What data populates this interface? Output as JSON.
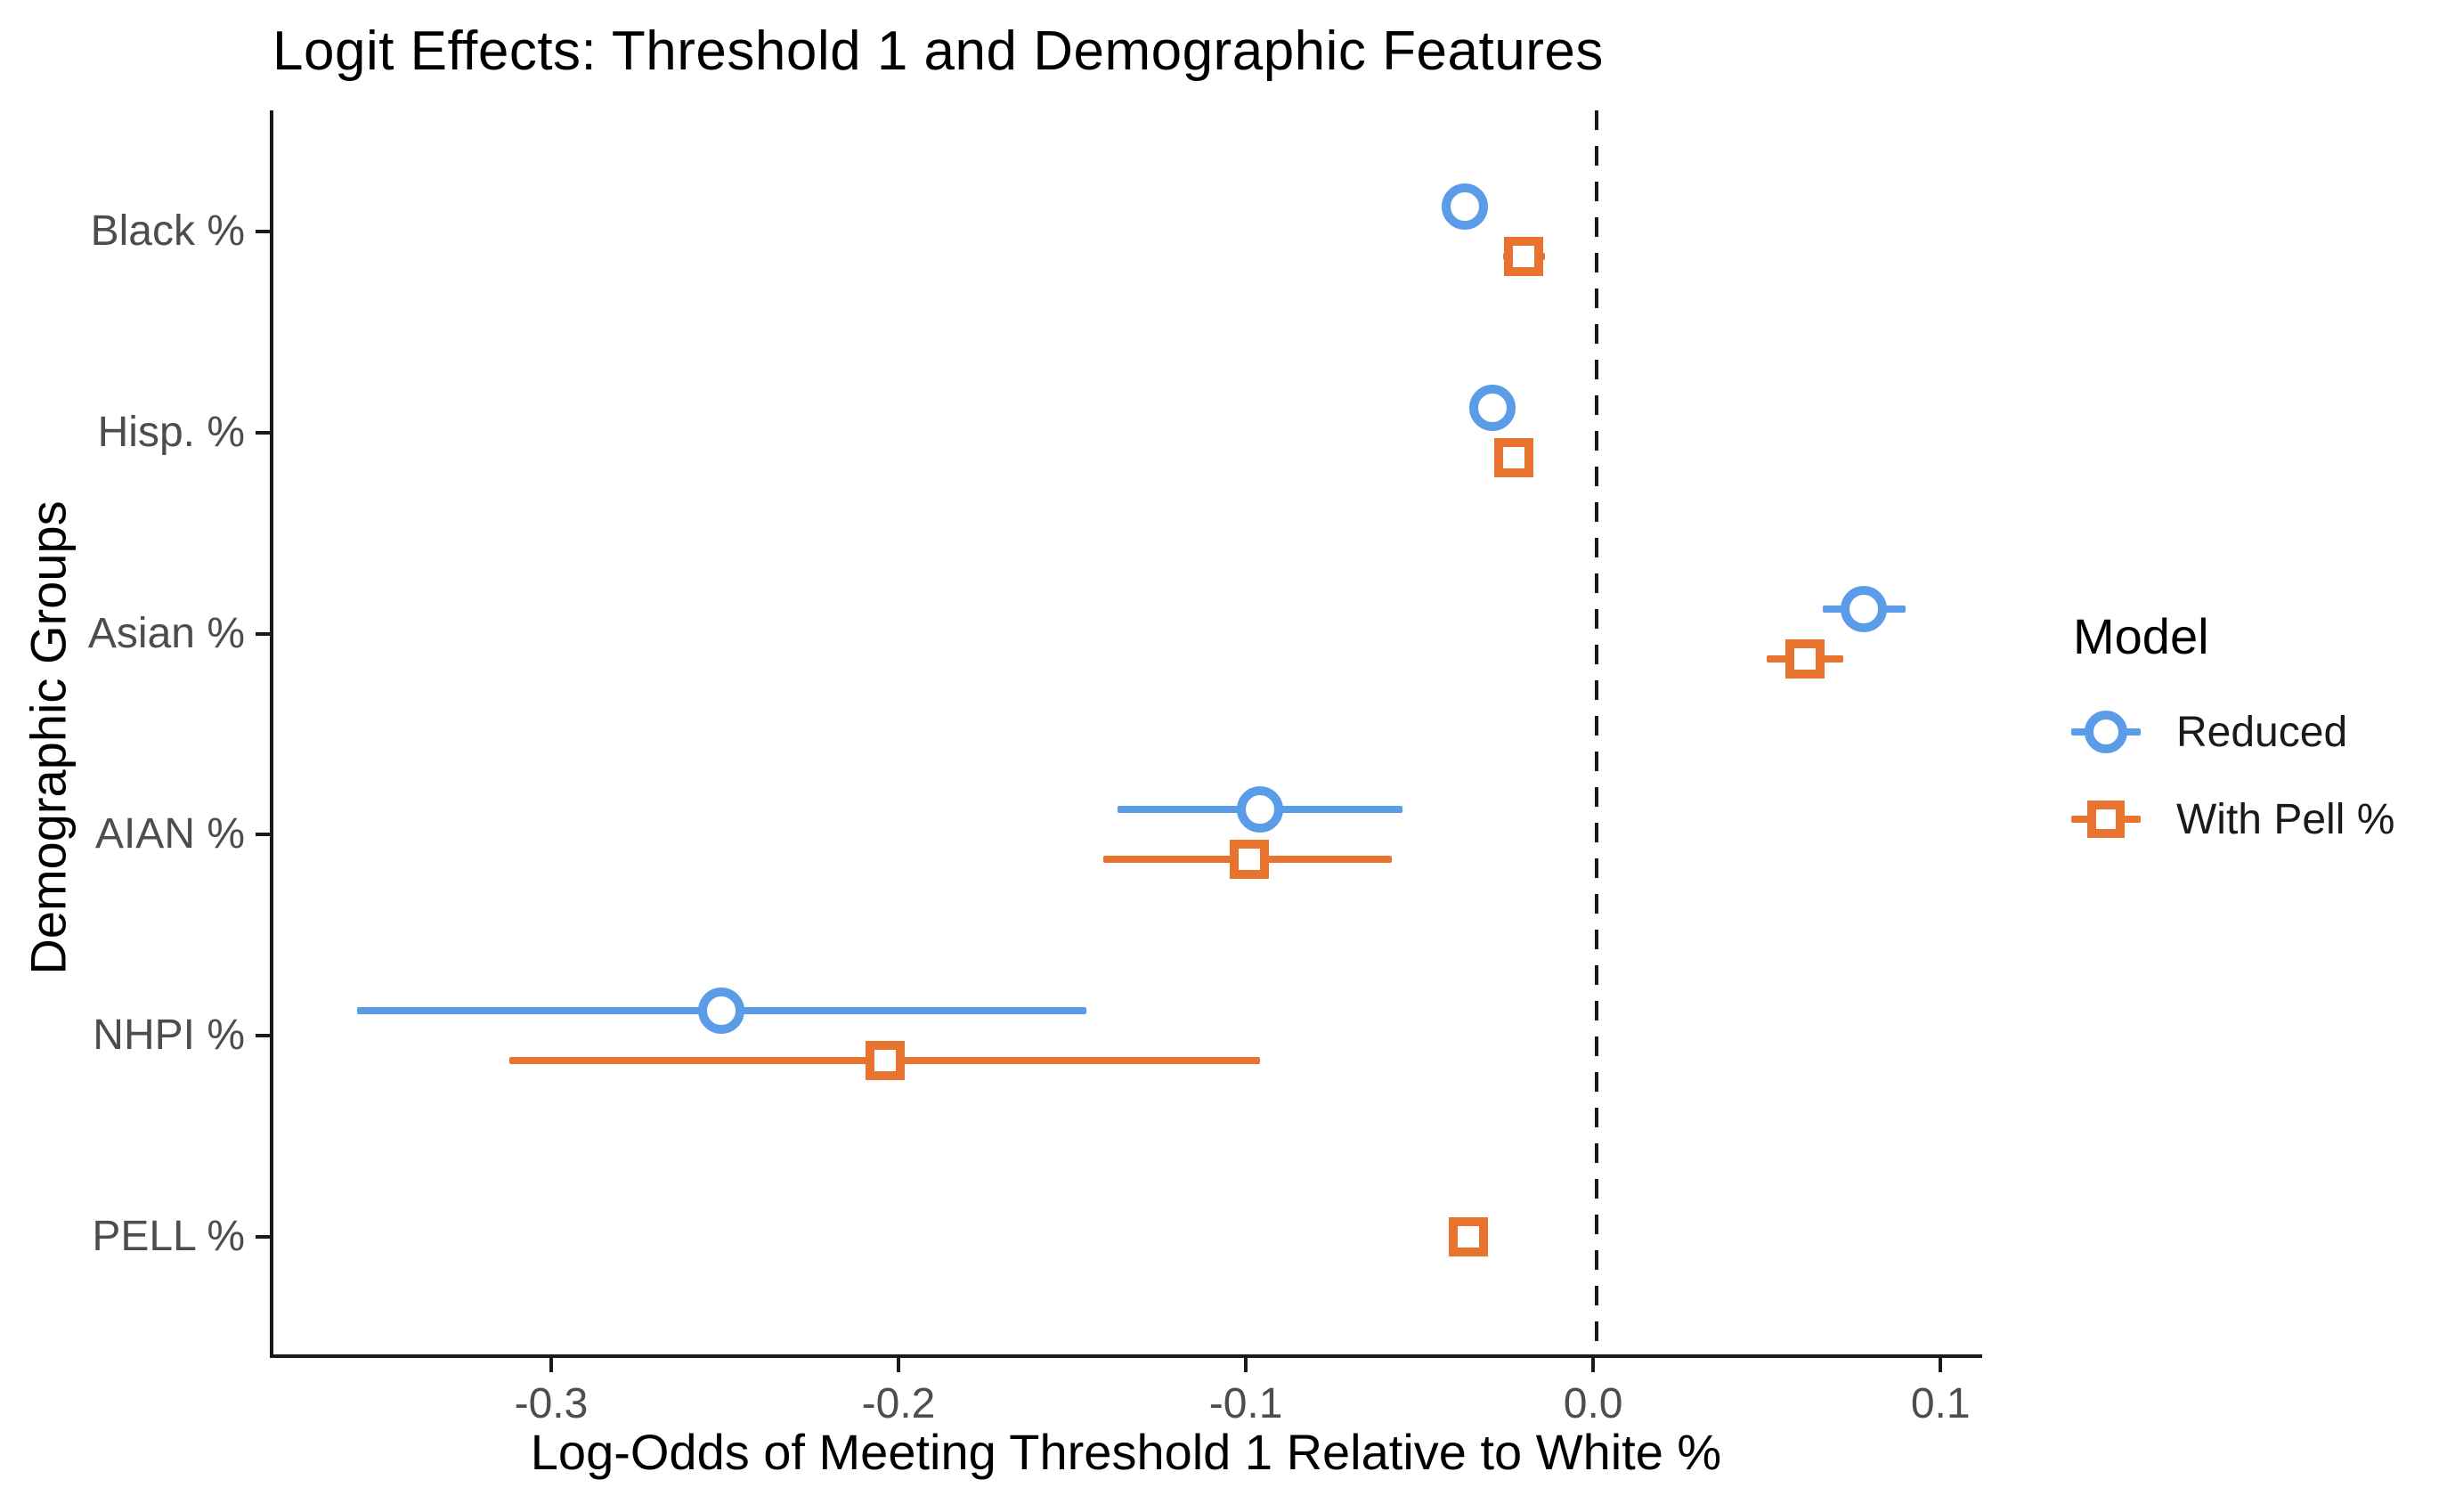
{
  "chart_data": {
    "type": "scatter",
    "subtype": "dot-and-whisker coefficient plot",
    "title": "Logit Effects: Threshold 1 and Demographic Features",
    "xlabel": "Log-Odds of Meeting Threshold 1 Relative to White %",
    "ylabel": "Demographic Groups",
    "categories": [
      "Black %",
      "Hisp. %",
      "Asian %",
      "AIAN %",
      "NHPI %",
      "PELL %"
    ],
    "x_tick_labels": [
      "-0.3",
      "-0.2",
      "-0.1",
      "0.0",
      "0.1"
    ],
    "x_tick_values": [
      -0.3,
      -0.2,
      -0.1,
      0.0,
      0.1
    ],
    "xlim": [
      -0.381,
      0.112
    ],
    "reference_line_x": 0,
    "grid": false,
    "legend": {
      "title": "Model",
      "position": "right",
      "entries": [
        "Reduced",
        "With Pell %"
      ]
    },
    "series": [
      {
        "name": "Reduced",
        "marker": "circle",
        "color": "#5B9CE8",
        "points": [
          {
            "category": "Black %",
            "estimate": -0.038,
            "ci_low": -0.038,
            "ci_high": -0.038
          },
          {
            "category": "Hisp. %",
            "estimate": -0.03,
            "ci_low": -0.03,
            "ci_high": -0.03
          },
          {
            "category": "Asian %",
            "estimate": 0.077,
            "ci_low": 0.065,
            "ci_high": 0.089
          },
          {
            "category": "AIAN %",
            "estimate": -0.097,
            "ci_low": -0.138,
            "ci_high": -0.056
          },
          {
            "category": "NHPI %",
            "estimate": -0.252,
            "ci_low": -0.357,
            "ci_high": -0.147
          },
          {
            "category": "PELL %",
            "estimate": null,
            "ci_low": null,
            "ci_high": null
          }
        ]
      },
      {
        "name": "With Pell %",
        "marker": "square",
        "color": "#E8732E",
        "points": [
          {
            "category": "Black %",
            "estimate": -0.021,
            "ci_low": -0.027,
            "ci_high": -0.015
          },
          {
            "category": "Hisp. %",
            "estimate": -0.024,
            "ci_low": -0.024,
            "ci_high": -0.024
          },
          {
            "category": "Asian %",
            "estimate": 0.06,
            "ci_low": 0.049,
            "ci_high": 0.071
          },
          {
            "category": "AIAN %",
            "estimate": -0.1,
            "ci_low": -0.142,
            "ci_high": -0.059
          },
          {
            "category": "NHPI %",
            "estimate": -0.205,
            "ci_low": -0.313,
            "ci_high": -0.097
          },
          {
            "category": "PELL %",
            "estimate": -0.037,
            "ci_low": -0.037,
            "ci_high": -0.037
          }
        ]
      }
    ],
    "colors": {
      "reduced": "#5B9CE8",
      "with_pell": "#E8732E",
      "reference_line": "#1a1a1a",
      "axis_line": "#1a1a1a",
      "tick_label": "#4d4d4d",
      "background": "#ffffff"
    }
  }
}
